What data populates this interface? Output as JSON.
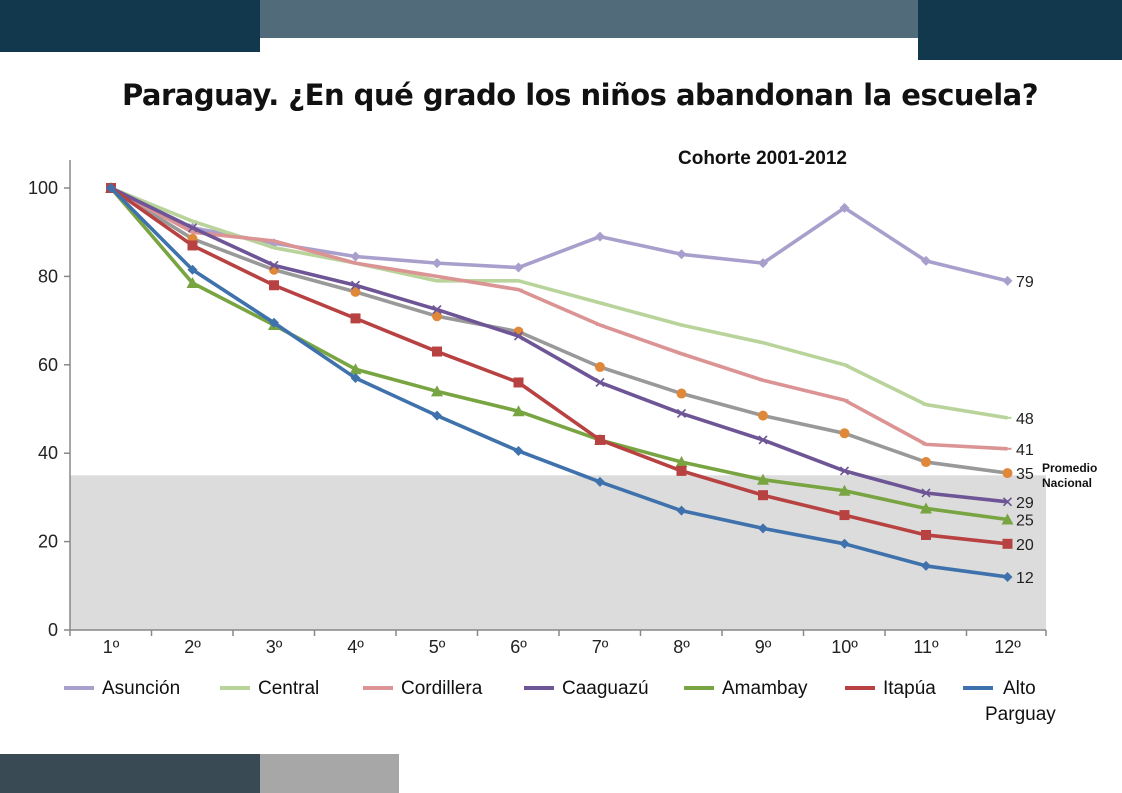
{
  "slide": {
    "title": "Paraguay. ¿En qué grado los niños abandonan la escuela?",
    "colors": {
      "header_dark": "#11384c",
      "header_mid": "#516b7a",
      "footer_dark": "#3a4a55",
      "footer_light": "#a7a7a7",
      "band": "#dcdcdc"
    }
  },
  "chart_data": {
    "type": "line",
    "subtitle": "Cohorte 2001-2012",
    "xlabel": "",
    "ylabel": "",
    "categories": [
      "1º",
      "2º",
      "3º",
      "4º",
      "5º",
      "6º",
      "7º",
      "8º",
      "9º",
      "10º",
      "11º",
      "12º"
    ],
    "ylim": [
      0,
      100
    ],
    "yticks": [
      0,
      20,
      40,
      60,
      80,
      100
    ],
    "grid": false,
    "legend_position": "bottom",
    "shaded_band": {
      "from": 0,
      "to": 35,
      "label_line1": "Promedio",
      "label_line2": "Nacional"
    },
    "series": [
      {
        "name": "Asunción",
        "color": "#a99fcc",
        "marker": "diamond",
        "end_label": "79",
        "values": [
          100,
          91,
          87.5,
          84.5,
          83,
          82,
          89,
          85,
          83,
          95.5,
          83.5,
          79
        ]
      },
      {
        "name": "Central",
        "color": "#b8d49b",
        "marker": "dash",
        "end_label": "48",
        "values": [
          100,
          92.5,
          86.5,
          83,
          79,
          79,
          74,
          69,
          65,
          60,
          51,
          48
        ]
      },
      {
        "name": "Cordillera",
        "color": "#dc9393",
        "marker": "dash",
        "end_label": "41",
        "values": [
          100,
          90,
          88,
          83,
          80,
          77,
          69,
          62.5,
          56.5,
          52,
          42,
          41
        ]
      },
      {
        "name": "Caaguazú",
        "color": "#6d5596",
        "marker": "x",
        "end_label": "29",
        "values": [
          100,
          91,
          82.5,
          78,
          72.5,
          66.5,
          56,
          49,
          43,
          36,
          31,
          29
        ]
      },
      {
        "name": "Amambay",
        "color": "#78a441",
        "marker": "triangle",
        "end_label": "25",
        "values": [
          100,
          78.5,
          69,
          59,
          54,
          49.5,
          43,
          38,
          34,
          31.5,
          27.5,
          25
        ]
      },
      {
        "name": "Itapúa",
        "color": "#b84242",
        "marker": "square",
        "end_label": "20",
        "values": [
          100,
          87,
          78,
          70.5,
          63,
          56,
          43,
          36,
          30.5,
          26,
          21.5,
          19.5
        ]
      },
      {
        "name": "Alto Parguay",
        "legend_line1": "Alto",
        "legend_line2": "Parguay",
        "color": "#3f72ac",
        "marker": "diamond",
        "end_label": "12",
        "values": [
          100,
          81.5,
          69.5,
          57,
          48.5,
          40.5,
          33.5,
          27,
          23,
          19.5,
          14.5,
          12
        ]
      }
    ],
    "national_average": {
      "name": "",
      "color": "#999999",
      "marker": "circle",
      "marker_color": "#e0883a",
      "end_label": "35",
      "values": [
        100,
        88.5,
        81.5,
        76.5,
        71,
        67.5,
        59.5,
        53.5,
        48.5,
        44.5,
        38,
        35.5
      ]
    }
  }
}
